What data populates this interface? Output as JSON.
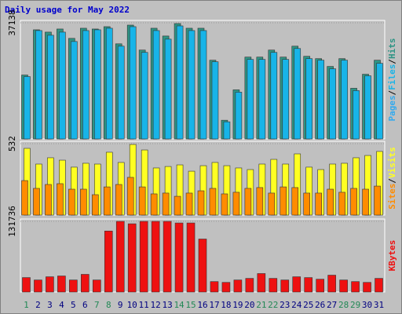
{
  "title": "Daily usage for May 2022",
  "categories": [
    "1",
    "2",
    "3",
    "4",
    "5",
    "6",
    "7",
    "8",
    "9",
    "10",
    "11",
    "12",
    "13",
    "14",
    "15",
    "16",
    "17",
    "18",
    "19",
    "20",
    "21",
    "22",
    "23",
    "24",
    "25",
    "26",
    "27",
    "28",
    "29",
    "30",
    "31"
  ],
  "category_colors": [
    "#228855",
    "#000080",
    "#000080",
    "#000080",
    "#000080",
    "#000080",
    "#228855",
    "#228855",
    "#000080",
    "#000080",
    "#000080",
    "#000080",
    "#000080",
    "#228855",
    "#228855",
    "#000080",
    "#000080",
    "#000080",
    "#000080",
    "#000080",
    "#228855",
    "#228855",
    "#000080",
    "#000080",
    "#000080",
    "#000080",
    "#000080",
    "#228855",
    "#228855",
    "#000080",
    "#000080"
  ],
  "legend_separator": "/",
  "chart_data": [
    {
      "type": "bar",
      "ylim": [
        0,
        37138
      ],
      "yticks": [
        37138
      ],
      "extra_legend": {
        "name": "Pages",
        "color": "#33aaee"
      },
      "series": [
        {
          "name": "Hits",
          "color": "#2e9484",
          "values": [
            20438,
            34895,
            34148,
            35144,
            32153,
            35393,
            35144,
            35892,
            30409,
            36390,
            28415,
            35393,
            32901,
            36889,
            35393,
            35393,
            25174,
            5982,
            15703,
            26171,
            26171,
            28415,
            26171,
            29661,
            26421,
            25673,
            23180,
            25673,
            16201,
            20688,
            25174
          ]
        },
        {
          "name": "Files",
          "color": "#18b4e8",
          "values": [
            19940,
            34646,
            33150,
            34147,
            31156,
            34646,
            34895,
            35394,
            29661,
            35892,
            27667,
            34646,
            31904,
            36141,
            34646,
            34646,
            24676,
            5484,
            14955,
            25424,
            25424,
            27667,
            25424,
            28913,
            25673,
            25174,
            22433,
            25174,
            15454,
            20189,
            24177
          ]
        }
      ]
    },
    {
      "type": "bar",
      "ylim": [
        0,
        532
      ],
      "yticks": [
        532
      ],
      "series": [
        {
          "name": "Visits",
          "color": "#ffff22",
          "values": [
            497,
            380,
            427,
            409,
            357,
            386,
            380,
            468,
            392,
            526,
            485,
            351,
            362,
            374,
            327,
            368,
            392,
            368,
            351,
            339,
            380,
            415,
            380,
            456,
            357,
            339,
            380,
            386,
            427,
            444,
            474
          ]
        },
        {
          "name": "Sites",
          "color": "#ff8c00",
          "values": [
            257,
            199,
            228,
            234,
            193,
            193,
            152,
            210,
            228,
            281,
            210,
            158,
            164,
            140,
            164,
            181,
            199,
            158,
            170,
            199,
            205,
            164,
            210,
            205,
            164,
            164,
            193,
            170,
            199,
            193,
            216
          ]
        }
      ]
    },
    {
      "type": "bar",
      "ylim": [
        0,
        131736
      ],
      "yticks": [
        131736
      ],
      "series": [
        {
          "name": "KBytes",
          "color": "#ee1111",
          "values": [
            26946,
            22455,
            28443,
            29940,
            22455,
            32934,
            22455,
            113772,
            131736,
            127245,
            131736,
            131736,
            131736,
            128742,
            128742,
            98802,
            19461,
            17964,
            22455,
            25449,
            34431,
            25449,
            22455,
            28443,
            26946,
            23952,
            31437,
            22455,
            19461,
            17964,
            25449
          ]
        }
      ]
    }
  ]
}
